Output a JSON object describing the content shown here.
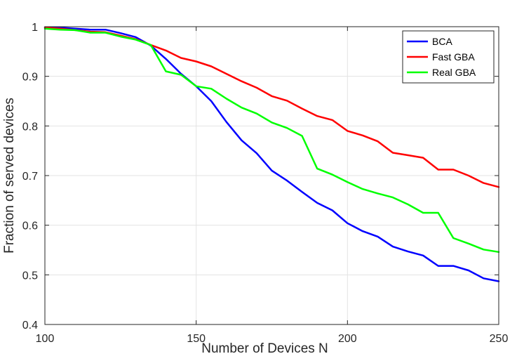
{
  "chart_data": {
    "type": "line",
    "title": "",
    "xlabel": "Number of Devices N",
    "ylabel": "Fraction of served devices",
    "xlim": [
      100,
      250
    ],
    "ylim": [
      0.4,
      1.0
    ],
    "xticks": [
      100,
      150,
      200,
      250
    ],
    "yticks": [
      0.4,
      0.5,
      0.6,
      0.7,
      0.8,
      0.9,
      1.0
    ],
    "xtick_labels": [
      "100",
      "150",
      "200",
      "250"
    ],
    "ytick_labels": [
      "0.4",
      "0.5",
      "0.6",
      "0.7",
      "0.8",
      "0.9",
      "1"
    ],
    "grid": true,
    "legend_position": "top-right",
    "x": [
      100,
      105,
      110,
      115,
      120,
      125,
      130,
      135,
      140,
      145,
      150,
      155,
      160,
      165,
      170,
      175,
      180,
      185,
      190,
      195,
      200,
      205,
      210,
      215,
      220,
      225,
      230,
      235,
      240,
      245,
      250
    ],
    "series": [
      {
        "name": "BCA",
        "color": "#0000ff",
        "values": [
          0.999,
          0.998,
          0.996,
          0.994,
          0.994,
          0.987,
          0.979,
          0.962,
          0.935,
          0.905,
          0.88,
          0.85,
          0.808,
          0.771,
          0.745,
          0.71,
          0.69,
          0.667,
          0.645,
          0.63,
          0.604,
          0.588,
          0.577,
          0.557,
          0.547,
          0.539,
          0.518,
          0.518,
          0.509,
          0.493,
          0.487
        ]
      },
      {
        "name": "Fast GBA",
        "color": "#ff0000",
        "values": [
          0.998,
          0.996,
          0.993,
          0.99,
          0.989,
          0.982,
          0.975,
          0.963,
          0.952,
          0.937,
          0.93,
          0.92,
          0.905,
          0.89,
          0.877,
          0.86,
          0.851,
          0.835,
          0.82,
          0.812,
          0.79,
          0.781,
          0.769,
          0.746,
          0.741,
          0.736,
          0.712,
          0.712,
          0.7,
          0.685,
          0.677
        ]
      },
      {
        "name": "Real GBA",
        "color": "#00ff00",
        "values": [
          0.996,
          0.994,
          0.993,
          0.988,
          0.988,
          0.98,
          0.974,
          0.963,
          0.91,
          0.903,
          0.88,
          0.875,
          0.855,
          0.837,
          0.825,
          0.807,
          0.796,
          0.78,
          0.714,
          0.702,
          0.687,
          0.673,
          0.664,
          0.656,
          0.642,
          0.625,
          0.625,
          0.574,
          0.563,
          0.551,
          0.546
        ]
      }
    ]
  }
}
